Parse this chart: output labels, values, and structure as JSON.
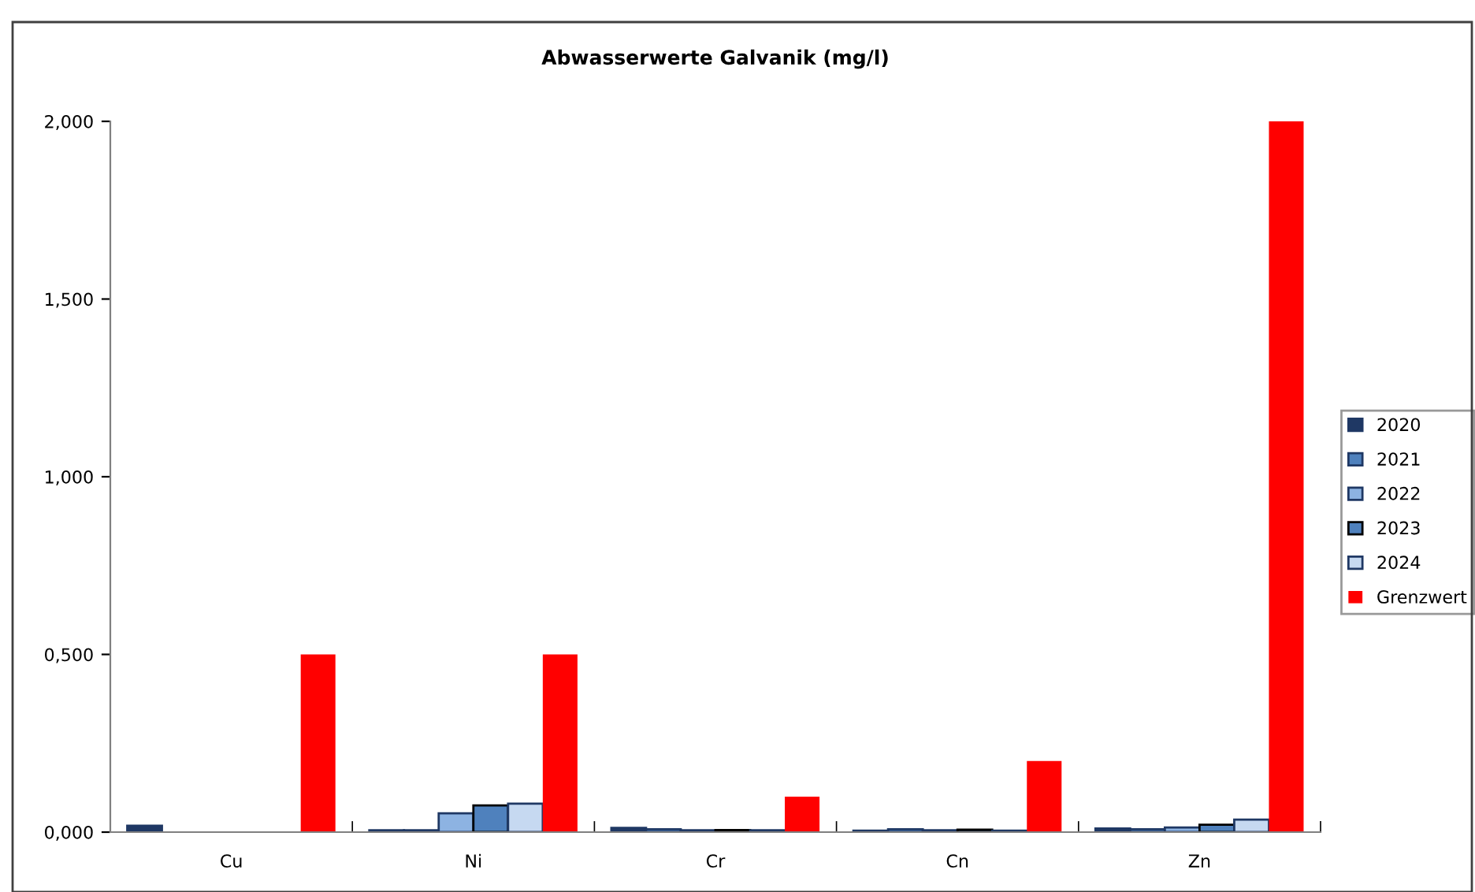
{
  "chart_data": {
    "type": "bar",
    "title": "Abwasserwerte Galvanik (mg/l)",
    "categories": [
      "Cu",
      "Ni",
      "Cr",
      "Cn",
      "Zn"
    ],
    "series": [
      {
        "name": "2020",
        "color": "#1f3864",
        "values": [
          0.018,
          0.005,
          0.012,
          0.004,
          0.01
        ]
      },
      {
        "name": "2021",
        "color": "#4f81bd",
        "values": [
          null,
          0.005,
          0.008,
          0.008,
          0.008
        ]
      },
      {
        "name": "2022",
        "color": "#8db3e2",
        "values": [
          null,
          0.053,
          0.005,
          0.005,
          0.013
        ]
      },
      {
        "name": "2023",
        "color": "#4f81bd",
        "values": [
          null,
          0.075,
          0.006,
          0.007,
          0.021
        ]
      },
      {
        "name": "2024",
        "color": "#c6d9f1",
        "values": [
          null,
          0.08,
          0.005,
          0.004,
          0.035
        ]
      },
      {
        "name": "Grenzwert",
        "color": "#ff0000",
        "values": [
          0.5,
          0.5,
          0.1,
          0.2,
          2
        ]
      }
    ],
    "ylim": [
      0,
      2
    ],
    "yticks": [
      {
        "value": 0,
        "label": "0,000"
      },
      {
        "value": 0.5,
        "label": "0,500"
      },
      {
        "value": 1,
        "label": "1,000"
      },
      {
        "value": 1.5,
        "label": "1,500"
      },
      {
        "value": 2,
        "label": "2,000"
      }
    ],
    "grid": false,
    "legend": "right"
  }
}
